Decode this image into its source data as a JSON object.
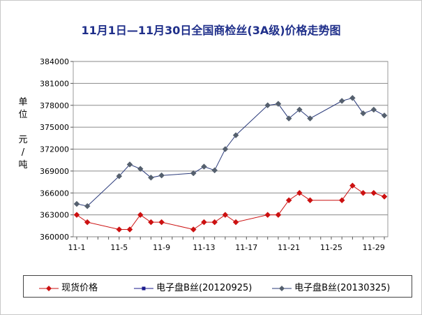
{
  "chart_data": {
    "type": "line",
    "title": "11月1日—11月30日全国商检丝(3A级)价格走势图",
    "ylabel_chars": [
      "单",
      "位",
      "元",
      "/",
      "吨"
    ],
    "ylim": [
      360000,
      384000
    ],
    "yticks": [
      360000,
      363000,
      366000,
      369000,
      372000,
      375000,
      378000,
      381000,
      384000
    ],
    "ytick_labels": [
      "360000",
      "363000",
      "366000",
      "369000",
      "372000",
      "375000",
      "378000",
      "381000",
      "384000"
    ],
    "xlim": [
      1,
      30
    ],
    "xticks": [
      1,
      5,
      9,
      13,
      17,
      21,
      25,
      29
    ],
    "xtick_labels": [
      "11-1",
      "11-5",
      "11-9",
      "11-13",
      "11-17",
      "11-21",
      "11-25",
      "11-29"
    ],
    "grid": "horizontal",
    "legend_position": "bottom",
    "series": [
      {
        "name": "现货价格",
        "color": "#cc1111",
        "marker": "diamond",
        "x": [
          1,
          2,
          5,
          6,
          7,
          8,
          9,
          12,
          13,
          14,
          15,
          16,
          19,
          20,
          21,
          22,
          23,
          26,
          27,
          28,
          29,
          30
        ],
        "values": [
          363000,
          362000,
          361000,
          361000,
          363000,
          362000,
          362000,
          361000,
          362000,
          362000,
          363000,
          362000,
          363000,
          363000,
          365000,
          366000,
          365000,
          365000,
          367000,
          366000,
          366000,
          365500
        ]
      },
      {
        "name": "电子盘B丝(20120925)",
        "color": "#1a1a8c",
        "marker": "square",
        "x": [],
        "values": []
      },
      {
        "name": "电子盘B丝(20130325)",
        "color": "#2a3a7a",
        "marker": "diamond",
        "x": [
          1,
          2,
          5,
          6,
          7,
          8,
          9,
          12,
          13,
          14,
          15,
          16,
          19,
          20,
          21,
          22,
          23,
          26,
          27,
          28,
          29,
          30
        ],
        "values": [
          364500,
          364200,
          368300,
          369900,
          369300,
          368100,
          368400,
          368700,
          369600,
          369100,
          372000,
          373900,
          378000,
          378200,
          376200,
          377400,
          376200,
          378600,
          379000,
          376900,
          377400,
          376600
        ]
      }
    ]
  }
}
